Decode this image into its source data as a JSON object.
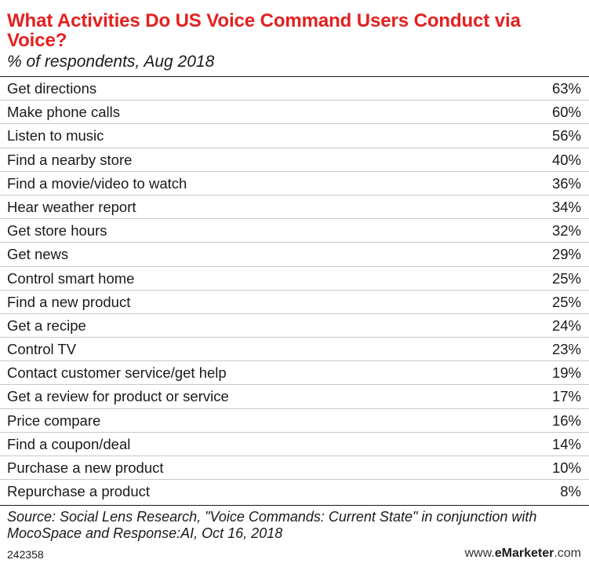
{
  "title": "What Activities Do US Voice Command Users Conduct via Voice?",
  "subtitle": "% of respondents, Aug 2018",
  "source": "Source: Social Lens Research, \"Voice Commands: Current State\" in conjunction with MocoSpace and Response:AI, Oct 16, 2018",
  "chart_id": "242358",
  "brand": {
    "prefix": "www.",
    "bold": "eMarketer",
    "suffix": ".com"
  },
  "colors": {
    "title": "#e4201f",
    "text": "#1a1a1a",
    "divider": "#c8c8c8"
  },
  "chart_data": {
    "type": "table",
    "title": "What Activities Do US Voice Command Users Conduct via Voice?",
    "subtitle": "% of respondents, Aug 2018",
    "unit": "%",
    "categories": [
      "Get directions",
      "Make phone calls",
      "Listen to music",
      "Find a nearby store",
      "Find a movie/video to watch",
      "Hear weather report",
      "Get store hours",
      "Get news",
      "Control smart home",
      "Find a new product",
      "Get a recipe",
      "Control TV",
      "Contact customer service/get help",
      "Get a review for product or service",
      "Price compare",
      "Find a coupon/deal",
      "Purchase a new product",
      "Repurchase a product"
    ],
    "values": [
      63,
      60,
      56,
      40,
      36,
      34,
      32,
      29,
      25,
      25,
      24,
      23,
      19,
      17,
      16,
      14,
      10,
      8
    ],
    "display": [
      "63%",
      "60%",
      "56%",
      "40%",
      "36%",
      "34%",
      "32%",
      "29%",
      "25%",
      "25%",
      "24%",
      "23%",
      "19%",
      "17%",
      "16%",
      "14%",
      "10%",
      "8%"
    ]
  }
}
